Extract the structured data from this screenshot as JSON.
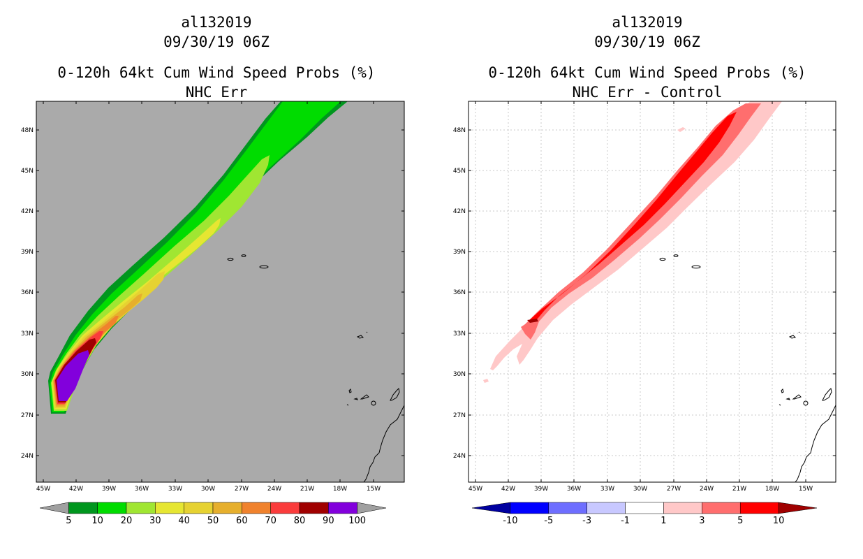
{
  "left_panel": {
    "storm_id": "al132019",
    "datetime": "09/30/19 06Z",
    "product": "0-120h 64kt Cum Wind Speed Probs (%)",
    "subtitle": "NHC Err",
    "lat_labels": [
      "48N",
      "45N",
      "42N",
      "39N",
      "36N",
      "33N",
      "30N",
      "27N",
      "24N"
    ],
    "lon_labels": [
      "45W",
      "42W",
      "39W",
      "36W",
      "33W",
      "30W",
      "27W",
      "24W",
      "21W",
      "18W",
      "15W"
    ],
    "colorbar": {
      "colors": [
        "#a0a0a0",
        "#00961e",
        "#00dc00",
        "#a0e632",
        "#e6e632",
        "#e6d232",
        "#e6af2d",
        "#f0822d",
        "#fa3c3c",
        "#a00000",
        "#8200dc",
        "#a0a0a0"
      ],
      "labels": [
        "5",
        "10",
        "20",
        "30",
        "40",
        "50",
        "60",
        "70",
        "80",
        "90",
        "100"
      ]
    }
  },
  "right_panel": {
    "storm_id": "al132019",
    "datetime": "09/30/19 06Z",
    "product": "0-120h 64kt Cum Wind Speed Probs (%)",
    "subtitle": "NHC Err - Control",
    "lat_labels": [
      "48N",
      "45N",
      "42N",
      "39N",
      "36N",
      "33N",
      "30N",
      "27N",
      "24N"
    ],
    "lon_labels": [
      "45W",
      "42W",
      "39W",
      "36W",
      "33W",
      "30W",
      "27W",
      "24W",
      "21W",
      "18W",
      "15W"
    ],
    "colorbar": {
      "colors": [
        "#0000a0",
        "#0000ff",
        "#6e6eff",
        "#c8c8ff",
        "#ffffff",
        "#ffc8c8",
        "#ff6e6e",
        "#ff0000",
        "#a00000"
      ],
      "labels": [
        "-10",
        "-5",
        "-3",
        "-1",
        "1",
        "3",
        "5",
        "10"
      ]
    }
  },
  "colors": {
    "ocean_gray": "#aaaaaa",
    "grid_line": "#c8c8c8",
    "coastline": "#000000"
  }
}
